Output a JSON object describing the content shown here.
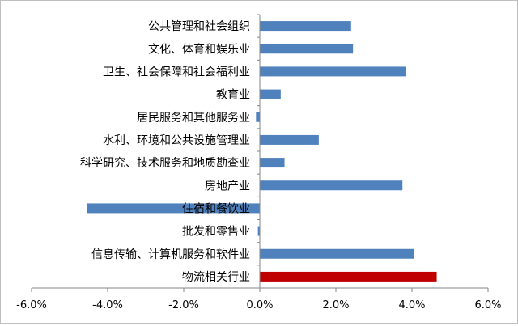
{
  "chart_data": {
    "type": "bar",
    "orientation": "horizontal",
    "categories": [
      "公共管理和社会组织",
      "文化、体育和娱乐业",
      "卫生、社会保障和社会福利业",
      "教育业",
      "居民服务和其他服务业",
      "水利、环境和公共设施管理业",
      "科学研究、技术服务和地质勘查业",
      "房地产业",
      "住宿和餐饮业",
      "批发和零售业",
      "信息传输、计算机服务和软件业",
      "物流相关行业"
    ],
    "values": [
      2.4,
      2.45,
      3.85,
      0.55,
      -0.1,
      1.55,
      0.65,
      3.75,
      -4.55,
      -0.05,
      4.05,
      4.65
    ],
    "highlight_index": 11,
    "colors": {
      "bar": "#4f81bd",
      "highlight": "#c00000",
      "axis": "#868686"
    },
    "xlim": [
      -6,
      6
    ],
    "x_ticks": [
      -6,
      -4,
      -2,
      0,
      2,
      4,
      6
    ],
    "x_tick_labels": [
      "-6.0%",
      "-4.0%",
      "-2.0%",
      "0.0%",
      "2.0%",
      "4.0%",
      "6.0%"
    ],
    "title": "",
    "xlabel": "",
    "ylabel": "",
    "grid": false,
    "legend": "none"
  }
}
